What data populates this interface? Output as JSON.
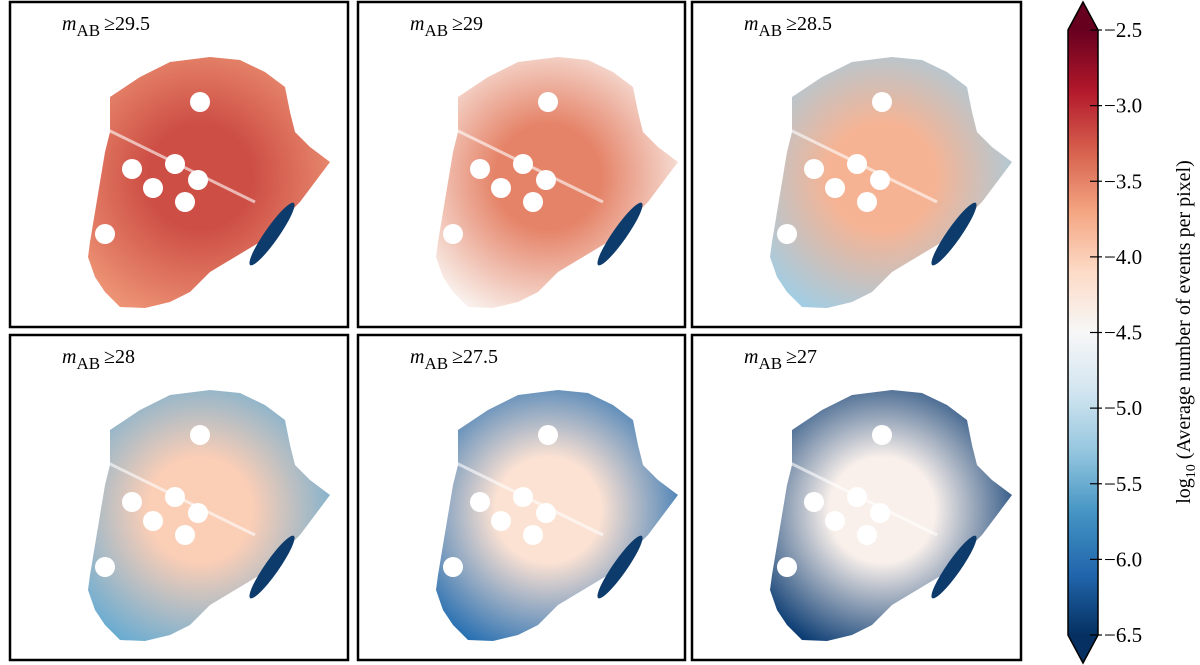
{
  "chart_data": {
    "type": "heatmap",
    "panels": [
      {
        "symbol": "m",
        "subscript": "AB",
        "threshold": "≥29.5",
        "core": -3.2,
        "edge": -3.6
      },
      {
        "symbol": "m",
        "subscript": "AB",
        "threshold": "≥29",
        "core": -3.5,
        "edge": -4.4
      },
      {
        "symbol": "m",
        "subscript": "AB",
        "threshold": "≥28.5",
        "core": -3.8,
        "edge": -5.2
      },
      {
        "symbol": "m",
        "subscript": "AB",
        "threshold": "≥28",
        "core": -4.0,
        "edge": -5.5
      },
      {
        "symbol": "m",
        "subscript": "AB",
        "threshold": "≥27.5",
        "core": -4.2,
        "edge": -6.0
      },
      {
        "symbol": "m",
        "subscript": "AB",
        "threshold": "≥27",
        "core": -4.4,
        "edge": -6.4
      }
    ],
    "colorbar": {
      "label_prefix": "log",
      "label_subscript": "10",
      "label_text": " (Average number of events per pixel)",
      "clim": [
        -6.5,
        -2.5
      ],
      "ticks": [
        {
          "value": -6.5,
          "label": "−6.5"
        },
        {
          "value": -6.0,
          "label": "−6.0"
        },
        {
          "value": -5.5,
          "label": "−5.5"
        },
        {
          "value": -5.0,
          "label": "−5.0"
        },
        {
          "value": -4.5,
          "label": "−4.5"
        },
        {
          "value": -4.0,
          "label": "−4.0"
        },
        {
          "value": -3.5,
          "label": "−3.5"
        },
        {
          "value": -3.0,
          "label": "−3.0"
        },
        {
          "value": -2.5,
          "label": "−2.5"
        }
      ],
      "colormap": [
        "#053061",
        "#2166ac",
        "#4393c3",
        "#92c5de",
        "#d1e5f0",
        "#f7f7f7",
        "#fddbc7",
        "#f4a582",
        "#d6604d",
        "#b2182b",
        "#67001f"
      ]
    }
  }
}
